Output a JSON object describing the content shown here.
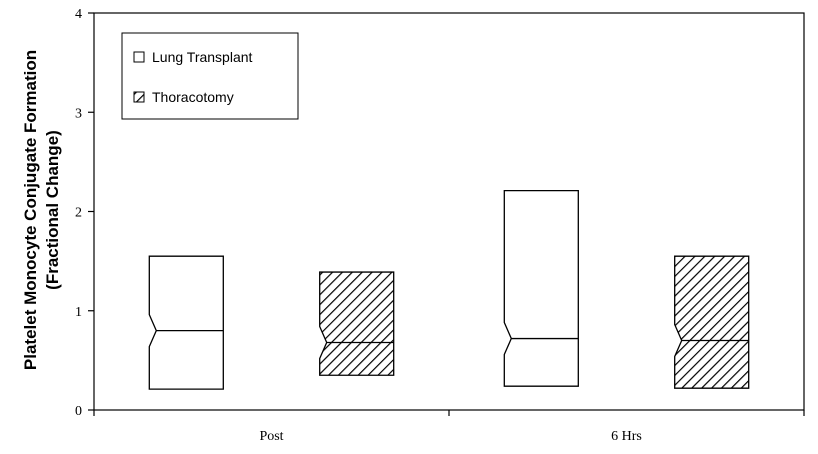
{
  "chart_data": {
    "type": "box",
    "title": "",
    "xlabel": "",
    "ylabel_lines": [
      "Platelet Monocyte Conjugate Formation",
      "(Fractional Change)"
    ],
    "ylim": [
      0,
      4
    ],
    "yticks": [
      "0",
      "1",
      "2",
      "3",
      "4"
    ],
    "categories": [
      "Post",
      "6 Hrs"
    ],
    "grid": false,
    "legend_position": "top-left",
    "series": [
      {
        "name": "Lung Transplant",
        "fill": "none",
        "boxes": [
          {
            "category": "Post",
            "low": 0.21,
            "median": 0.8,
            "high": 1.55
          },
          {
            "category": "6 Hrs",
            "low": 0.24,
            "median": 0.72,
            "high": 2.21
          }
        ]
      },
      {
        "name": "Thoracotomy",
        "fill": "hatched",
        "boxes": [
          {
            "category": "Post",
            "low": 0.35,
            "median": 0.68,
            "high": 1.39
          },
          {
            "category": "6 Hrs",
            "low": 0.22,
            "median": 0.7,
            "high": 1.55
          }
        ]
      }
    ]
  }
}
